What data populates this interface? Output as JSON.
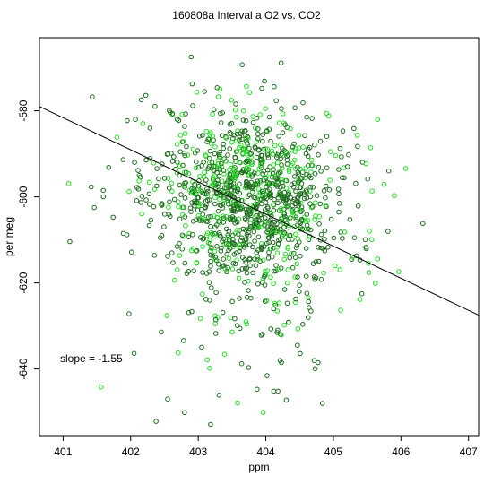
{
  "chart_data": {
    "type": "scatter",
    "title": "160808a   Interval a O2 vs. CO2",
    "xlabel": "ppm",
    "ylabel": "per meg",
    "xlim": [
      400.65,
      407.15
    ],
    "ylim": [
      -655.5,
      -563
    ],
    "x_ticks": [
      401,
      402,
      403,
      404,
      405,
      406,
      407
    ],
    "y_ticks": [
      -580,
      -600,
      -620,
      -640
    ],
    "annotation": "slope =  -1.55",
    "fit_line": {
      "slope": -1.55,
      "x": [
        400.65,
        407.15
      ],
      "y": [
        -579.0,
        -627.5
      ]
    },
    "marker": "open-circle",
    "colors": {
      "dark_points": "#1f6b1f",
      "bright_points": "#22dd22",
      "line": "#000000"
    },
    "point_count_estimate": 1300
  }
}
